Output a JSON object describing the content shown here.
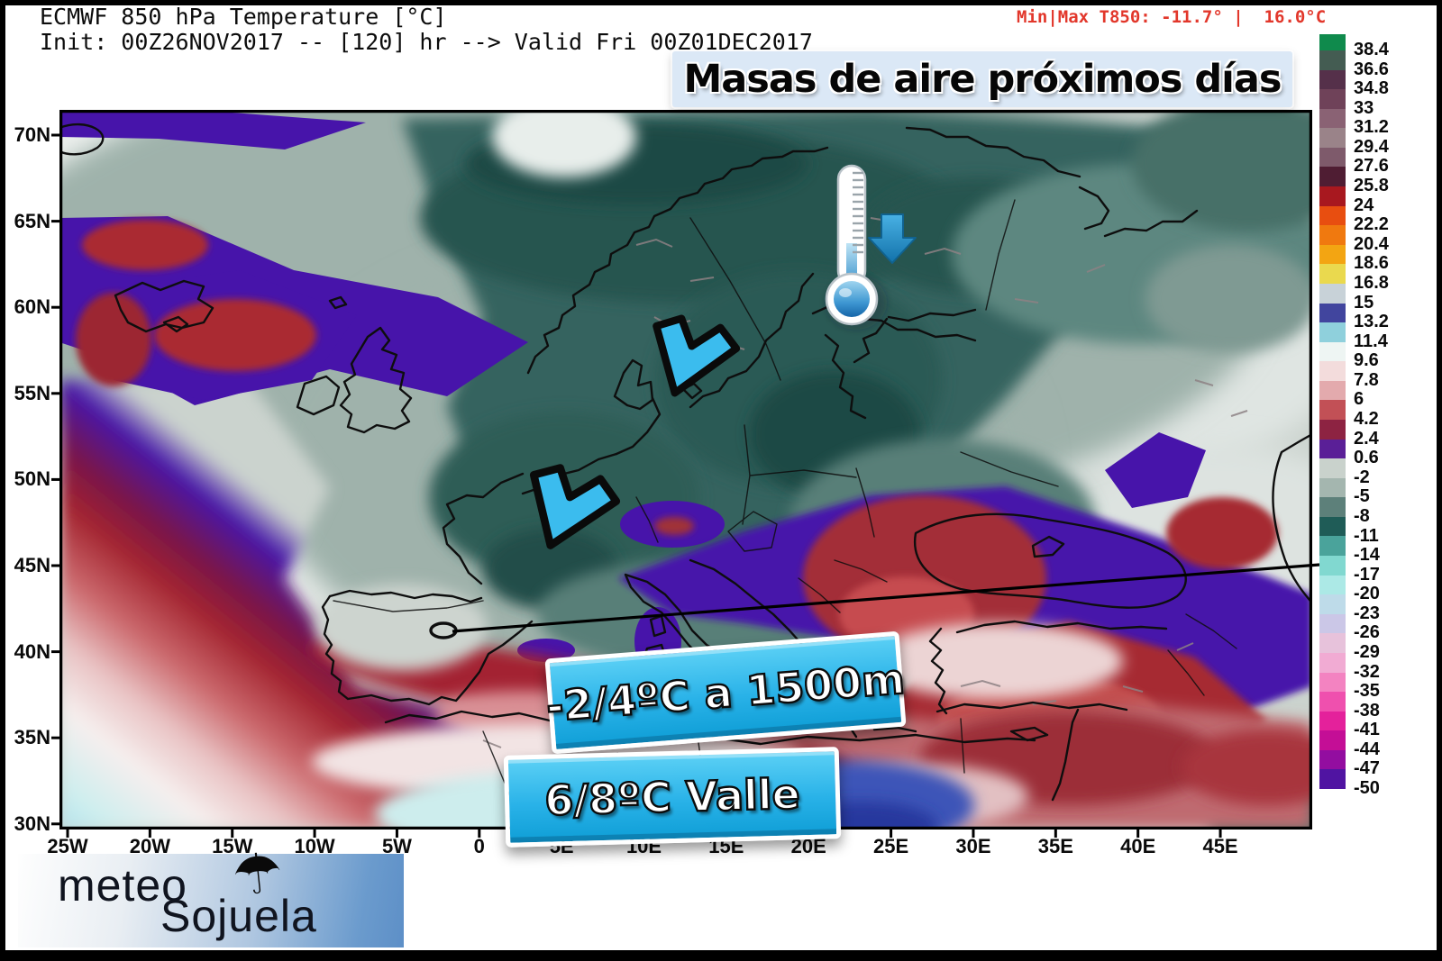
{
  "header": {
    "title_line1": "ECMWF 850 hPa Temperature [°C]",
    "title_line2": "Init: 00Z26NOV2017 -- [120] hr --> Valid Fri 00Z01DEC2017",
    "minmax_label": "Min|Max T850: -11.7° |  16.0°C"
  },
  "banner": {
    "text": "Masas de aire próximos días"
  },
  "callouts": {
    "upper_label": "-2/4ºC a 1500m",
    "lower_label": "6/8ºC Valle"
  },
  "axes": {
    "lat_labels": [
      "70N",
      "65N",
      "60N",
      "55N",
      "50N",
      "45N",
      "40N",
      "35N",
      "30N"
    ],
    "lon_labels": [
      "25W",
      "20W",
      "15W",
      "10W",
      "5W",
      "0",
      "5E",
      "10E",
      "15E",
      "20E",
      "25E",
      "30E",
      "35E",
      "40E",
      "45E"
    ]
  },
  "colorbar": {
    "cap_color": "#0f8a4c",
    "labels": [
      "38.4",
      "36.6",
      "34.8",
      "33",
      "31.2",
      "29.4",
      "27.6",
      "25.8",
      "24",
      "22.2",
      "20.4",
      "18.6",
      "16.8",
      "15",
      "13.2",
      "11.4",
      "9.6",
      "7.8",
      "6",
      "4.2",
      "2.4",
      "0.6",
      "-2",
      "-5",
      "-8",
      "-11",
      "-14",
      "-17",
      "-20",
      "-23",
      "-26",
      "-29",
      "-32",
      "-35",
      "-38",
      "-41",
      "-44",
      "-47",
      "-50"
    ],
    "segment_colors": [
      "#445c52",
      "#55304a",
      "#6f4259",
      "#8a6274",
      "#9a8389",
      "#7e5a6b",
      "#4f1d33",
      "#a8181f",
      "#e84e10",
      "#f0790f",
      "#f3a512",
      "#ead94e",
      "#c8d2d8",
      "#41459e",
      "#8fd0dc",
      "#eef5f3",
      "#f3dcdc",
      "#e3aaad",
      "#c25056",
      "#8d2342",
      "#5a1f97",
      "#c9d2cc",
      "#a4b6af",
      "#5d807a",
      "#1f5c57",
      "#4aa39b",
      "#81d8d0",
      "#ace9e6",
      "#bedbe9",
      "#cbc7e7",
      "#e7c2db",
      "#f1abd3",
      "#f383c1",
      "#ef50ae",
      "#e4219b",
      "#c40e96",
      "#930da0",
      "#5014a2"
    ]
  },
  "logo": {
    "part1": "meteo",
    "part2": "Sojuela",
    "icon": "umbrella-icon",
    "umbrella_glyph": "☂"
  },
  "palette": {
    "cold_core_teal": "#1f4a44",
    "mild_purple": "#4714aa",
    "warm_red": "#a32430",
    "arrow_blue": "#3bbcee",
    "banner_bg": "#dbe8f6",
    "callout_blue": "#29b2e8",
    "minmax_red": "#e2372b"
  }
}
